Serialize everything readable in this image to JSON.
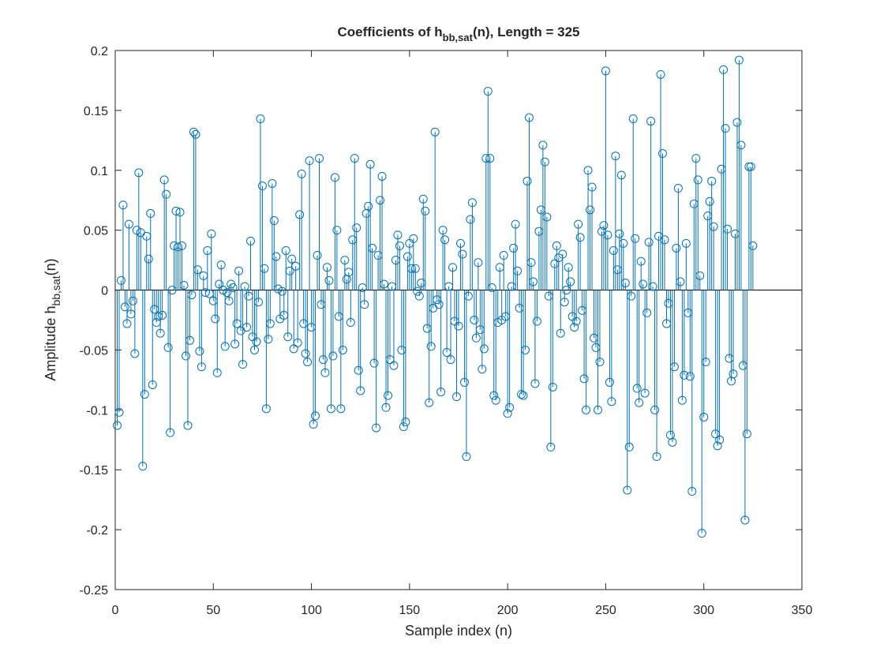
{
  "chart_data": {
    "type": "stem",
    "title": {
      "main": "Coefficients of h",
      "sub": "bb,sat",
      "tail": "(n), Length = 325"
    },
    "xlabel": "Sample index (n)",
    "ylabel": {
      "main": "Amplitude h",
      "sub": "bb,sat",
      "tail": "(n)"
    },
    "color": "#0072bd",
    "xlim": [
      0,
      350
    ],
    "xticks": [
      0,
      50,
      100,
      150,
      200,
      250,
      300,
      350
    ],
    "ylim": [
      -0.25,
      0.2
    ],
    "yticks": [
      -0.25,
      -0.2,
      -0.15,
      -0.1,
      -0.05,
      0,
      0.05,
      0.1,
      0.15,
      0.2
    ],
    "x": [
      1,
      2,
      3,
      4,
      5,
      6,
      7,
      8,
      9,
      10,
      11,
      12,
      13,
      14,
      15,
      16,
      17,
      18,
      19,
      20,
      21,
      22,
      23,
      24,
      25,
      26,
      27,
      28,
      29,
      30,
      31,
      32,
      33,
      34,
      35,
      36,
      37,
      38,
      39,
      40,
      41,
      42,
      43,
      44,
      45,
      46,
      47,
      48,
      49,
      50,
      51,
      52,
      53,
      54,
      55,
      56,
      57,
      58,
      59,
      60,
      61,
      62,
      63,
      64,
      65,
      66,
      67,
      68,
      69,
      70,
      71,
      72,
      73,
      74,
      75,
      76,
      77,
      78,
      79,
      80,
      81,
      82,
      83,
      84,
      85,
      86,
      87,
      88,
      89,
      90,
      91,
      92,
      93,
      94,
      95,
      96,
      97,
      98,
      99,
      100,
      101,
      102,
      103,
      104,
      105,
      106,
      107,
      108,
      109,
      110,
      111,
      112,
      113,
      114,
      115,
      116,
      117,
      118,
      119,
      120,
      121,
      122,
      123,
      124,
      125,
      126,
      127,
      128,
      129,
      130,
      131,
      132,
      133,
      134,
      135,
      136,
      137,
      138,
      139,
      140,
      141,
      142,
      143,
      144,
      145,
      146,
      147,
      148,
      149,
      150,
      151,
      152,
      153,
      154,
      155,
      156,
      157,
      158,
      159,
      160,
      161,
      162,
      163,
      164,
      165,
      166,
      167,
      168,
      169,
      170,
      171,
      172,
      173,
      174,
      175,
      176,
      177,
      178,
      179,
      180,
      181,
      182,
      183,
      184,
      185,
      186,
      187,
      188,
      189,
      190,
      191,
      192,
      193,
      194,
      195,
      196,
      197,
      198,
      199,
      200,
      201,
      202,
      203,
      204,
      205,
      206,
      207,
      208,
      209,
      210,
      211,
      212,
      213,
      214,
      215,
      216,
      217,
      218,
      219,
      220,
      221,
      222,
      223,
      224,
      225,
      226,
      227,
      228,
      229,
      230,
      231,
      232,
      233,
      234,
      235,
      236,
      237,
      238,
      239,
      240,
      241,
      242,
      243,
      244,
      245,
      246,
      247,
      248,
      249,
      250,
      251,
      252,
      253,
      254,
      255,
      256,
      257,
      258,
      259,
      260,
      261,
      262,
      263,
      264,
      265,
      266,
      267,
      268,
      269,
      270,
      271,
      272,
      273,
      274,
      275,
      276,
      277,
      278,
      279,
      280,
      281,
      282,
      283,
      284,
      285,
      286,
      287,
      288,
      289,
      290,
      291,
      292,
      293,
      294,
      295,
      296,
      297,
      298,
      299,
      300,
      301,
      302,
      303,
      304,
      305,
      306,
      307,
      308,
      309,
      310,
      311,
      312,
      313,
      314,
      315,
      316,
      317,
      318,
      319,
      320,
      321,
      322,
      323,
      324,
      325
    ],
    "values": [
      -0.113,
      -0.102,
      0.008,
      0.071,
      -0.014,
      -0.028,
      0.055,
      -0.02,
      -0.009,
      -0.053,
      0.05,
      0.098,
      0.048,
      -0.147,
      -0.087,
      0.045,
      0.026,
      0.064,
      -0.079,
      -0.016,
      -0.027,
      -0.022,
      -0.036,
      -0.021,
      0.092,
      0.08,
      -0.048,
      -0.119,
      0.0,
      0.037,
      0.066,
      0.036,
      0.065,
      0.037,
      0.004,
      -0.055,
      -0.113,
      -0.042,
      -0.004,
      0.132,
      0.13,
      0.017,
      -0.051,
      -0.064,
      0.012,
      -0.002,
      0.033,
      -0.003,
      0.047,
      -0.009,
      -0.024,
      -0.069,
      0.005,
      0.021,
      0.0,
      -0.047,
      -0.002,
      -0.009,
      0.005,
      0.002,
      -0.045,
      -0.028,
      0.016,
      -0.034,
      -0.062,
      0.003,
      -0.031,
      -0.005,
      0.041,
      -0.039,
      -0.05,
      -0.043,
      -0.01,
      0.143,
      0.087,
      0.018,
      -0.099,
      -0.041,
      -0.028,
      0.089,
      0.058,
      0.028,
      0.001,
      -0.024,
      -0.001,
      -0.021,
      0.033,
      -0.039,
      0.016,
      0.026,
      -0.049,
      0.02,
      -0.044,
      0.063,
      0.097,
      -0.028,
      -0.053,
      -0.06,
      0.108,
      -0.031,
      -0.112,
      -0.105,
      0.029,
      0.11,
      -0.012,
      -0.058,
      -0.069,
      0.019,
      0.008,
      -0.099,
      -0.055,
      0.094,
      0.05,
      -0.022,
      -0.099,
      -0.05,
      0.025,
      0.009,
      0.015,
      -0.027,
      0.042,
      0.11,
      0.052,
      -0.067,
      -0.084,
      0.002,
      -0.012,
      0.064,
      0.07,
      0.105,
      0.035,
      -0.061,
      -0.115,
      0.029,
      0.075,
      0.095,
      0.005,
      -0.098,
      -0.088,
      -0.058,
      0.003,
      -0.063,
      0.025,
      0.046,
      0.037,
      -0.05,
      -0.114,
      -0.11,
      0.028,
      0.039,
      0.018,
      0.043,
      0.018,
      -0.001,
      -0.005,
      0.006,
      0.076,
      0.066,
      -0.032,
      -0.094,
      -0.047,
      -0.015,
      0.132,
      -0.008,
      -0.012,
      -0.085,
      0.05,
      0.042,
      -0.052,
      0.003,
      -0.058,
      0.019,
      -0.026,
      -0.089,
      -0.03,
      0.039,
      0.03,
      -0.077,
      -0.139,
      -0.005,
      0.059,
      0.073,
      -0.025,
      -0.04,
      0.023,
      -0.033,
      -0.066,
      -0.049,
      0.11,
      0.166,
      0.11,
      0.002,
      -0.088,
      -0.092,
      -0.027,
      0.019,
      -0.025,
      0.029,
      -0.022,
      -0.103,
      -0.098,
      0.003,
      0.035,
      0.055,
      0.016,
      -0.015,
      -0.087,
      -0.088,
      -0.05,
      0.091,
      0.144,
      0.023,
      0.007,
      -0.078,
      -0.026,
      0.049,
      0.067,
      0.121,
      0.107,
      0.061,
      -0.005,
      -0.131,
      -0.081,
      0.022,
      0.037,
      0.027,
      -0.036,
      0.03,
      -0.01,
      0.0,
      0.019,
      0.007,
      -0.022,
      -0.031,
      -0.026,
      0.055,
      0.044,
      -0.017,
      -0.074,
      -0.1,
      0.1,
      0.067,
      0.086,
      -0.04,
      -0.048,
      -0.1,
      -0.06,
      0.049,
      0.054,
      0.183,
      0.046,
      -0.077,
      -0.093,
      0.033,
      0.112,
      0.017,
      0.047,
      0.096,
      0.039,
      0.006,
      -0.167,
      -0.131,
      -0.005,
      0.143,
      0.043,
      -0.082,
      -0.094,
      0.024,
      0.005,
      -0.086,
      -0.019,
      0.04,
      0.141,
      0.003,
      -0.1,
      -0.139,
      0.045,
      0.18,
      0.114,
      0.042,
      -0.028,
      -0.011,
      -0.121,
      -0.127,
      -0.064,
      0.035,
      0.085,
      0.007,
      -0.092,
      -0.071,
      0.039,
      -0.019,
      -0.072,
      -0.168,
      0.072,
      0.11,
      0.092,
      0.012,
      -0.203,
      -0.106,
      -0.06,
      0.062,
      0.074,
      0.091,
      0.053,
      -0.12,
      -0.13,
      -0.125,
      0.101,
      0.184,
      0.135,
      0.051,
      -0.057,
      -0.076,
      -0.07,
      0.047,
      0.14,
      0.192,
      0.121,
      -0.063,
      -0.192,
      -0.12,
      0.103,
      0.103,
      0.037
    ]
  }
}
